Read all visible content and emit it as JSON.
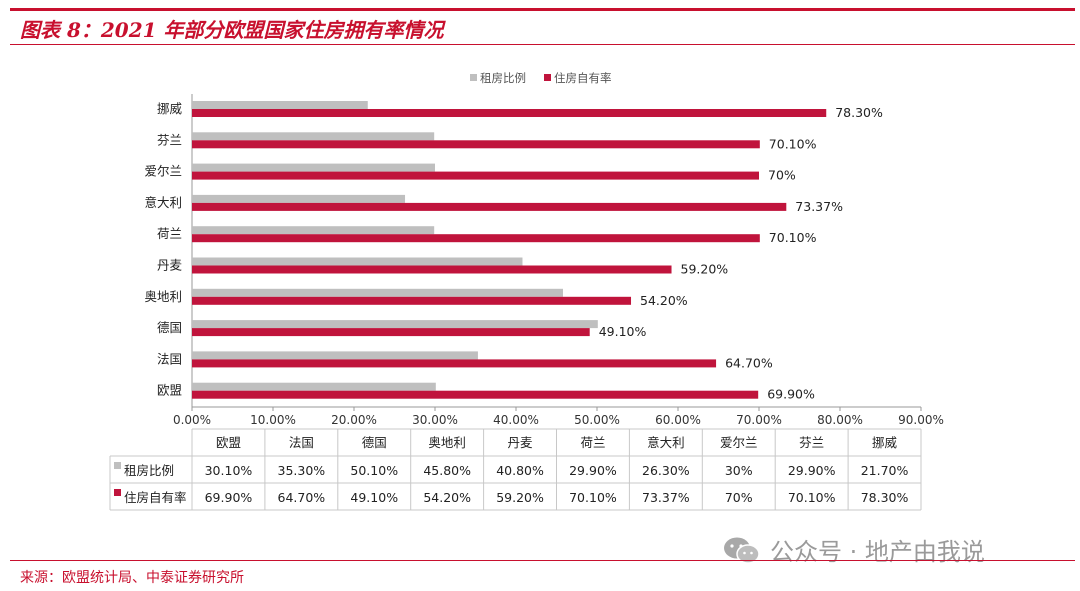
{
  "title": "图表 8：2021 年部分欧盟国家住房拥有率情况",
  "source": "来源：欧盟统计局、中泰证券研究所",
  "watermark": "公众号 · 地产由我说",
  "colors": {
    "rent": "#bfbfbf",
    "own": "#c0143c",
    "accent": "#c8102e"
  },
  "chart_data": {
    "type": "bar",
    "orientation": "horizontal",
    "categories": [
      "欧盟",
      "法国",
      "德国",
      "奥地利",
      "丹麦",
      "荷兰",
      "意大利",
      "爱尔兰",
      "芬兰",
      "挪威"
    ],
    "series": [
      {
        "name": "租房比例",
        "values": [
          30.1,
          35.3,
          50.1,
          45.8,
          40.8,
          29.9,
          26.3,
          30,
          29.9,
          21.7
        ],
        "labels": [
          "30.10%",
          "35.30%",
          "50.10%",
          "45.80%",
          "40.80%",
          "29.90%",
          "26.30%",
          "30%",
          "29.90%",
          "21.70%"
        ]
      },
      {
        "name": "住房自有率",
        "values": [
          69.9,
          64.7,
          49.1,
          54.2,
          59.2,
          70.1,
          73.37,
          70,
          70.1,
          78.3
        ],
        "labels": [
          "69.90%",
          "64.70%",
          "49.10%",
          "54.20%",
          "59.20%",
          "70.10%",
          "73.37%",
          "70%",
          "70.10%",
          "78.30%"
        ]
      }
    ],
    "xlim": [
      0,
      90
    ],
    "x_ticks": [
      "0.00%",
      "10.00%",
      "20.00%",
      "30.00%",
      "40.00%",
      "50.00%",
      "60.00%",
      "70.00%",
      "80.00%",
      "90.00%"
    ],
    "legend_position": "top",
    "grid": false,
    "data_table": true
  }
}
